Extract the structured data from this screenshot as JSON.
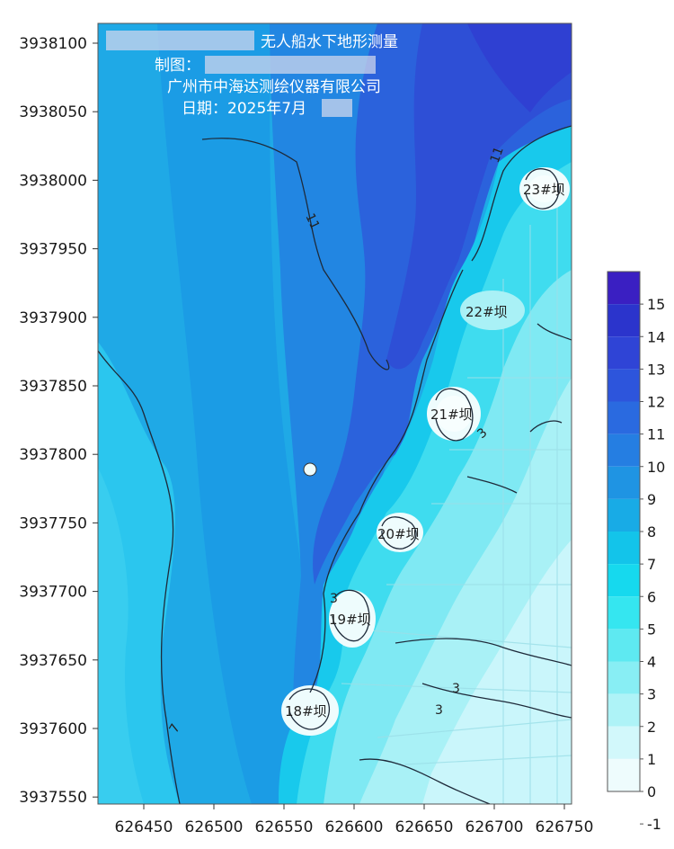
{
  "map": {
    "title": "无人船水下地形测量",
    "maker_label": "制图：",
    "company": "广州市中海达测绘仪器有限公司",
    "date": "日期：2025年7月"
  },
  "axes": {
    "x_ticks": [
      "626450",
      "626500",
      "626550",
      "626600",
      "626650",
      "626700",
      "626750"
    ],
    "y_ticks": [
      "3938100",
      "3938050",
      "3938000",
      "3937950",
      "3937900",
      "3937850",
      "3937800",
      "3937750",
      "3937700",
      "3937650",
      "3937600",
      "3937550"
    ]
  },
  "colorbar": {
    "levels": [
      "15",
      "14",
      "13",
      "12",
      "11",
      "10",
      "9",
      "8",
      "7",
      "6",
      "5",
      "4",
      "3",
      "2",
      "1",
      "0",
      "-1"
    ],
    "colors": [
      "#3a1fc2",
      "#2b34cc",
      "#2f44d6",
      "#2d55dc",
      "#2a6ae0",
      "#257ee2",
      "#1f94e3",
      "#18abe6",
      "#13c4ea",
      "#16d9ee",
      "#35e6f0",
      "#5ee9f1",
      "#88eef4",
      "#aef3f7",
      "#d2f8fb",
      "#eefcfd"
    ]
  },
  "dams": [
    "23#坝",
    "22#坝",
    "21#坝",
    "20#坝",
    "19#坝",
    "18#坝"
  ],
  "contour_labels": [
    "11",
    "11",
    "3",
    "3",
    "3",
    "7",
    "3"
  ]
}
